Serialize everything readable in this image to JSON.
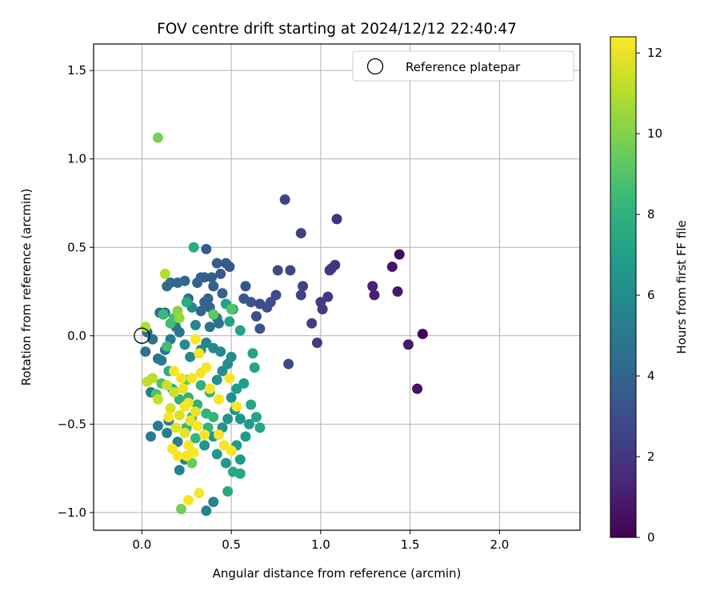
{
  "chart_data": {
    "type": "scatter",
    "title": "FOV centre drift starting at 2024/12/12 22:40:47",
    "xlabel": "Angular distance from reference (arcmin)",
    "ylabel": "Rotation from reference (arcmin)",
    "xlim": [
      -0.27,
      2.45
    ],
    "ylim": [
      -1.1,
      1.65
    ],
    "xticks": [
      0.0,
      0.5,
      1.0,
      1.5,
      2.0
    ],
    "xtick_labels": [
      "0.0",
      "0.5",
      "1.0",
      "1.5",
      "2.0"
    ],
    "yticks": [
      -1.0,
      -0.5,
      0.0,
      0.5,
      1.0,
      1.5
    ],
    "ytick_labels": [
      "−1.0",
      "−0.5",
      "0.0",
      "0.5",
      "1.0",
      "1.5"
    ],
    "grid": true,
    "legend": {
      "position": "top-right",
      "entries": [
        {
          "label": "Reference platepar",
          "marker": "open-circle"
        }
      ]
    },
    "reference_point": {
      "x": 0.0,
      "y": 0.0
    },
    "colorbar": {
      "label": "Hours from first FF file",
      "range": [
        0,
        12.4
      ],
      "ticks": [
        0,
        2,
        4,
        6,
        8,
        10,
        12
      ],
      "tick_labels": [
        "0",
        "2",
        "4",
        "6",
        "8",
        "10",
        "12"
      ],
      "colormap": "viridis",
      "colors": [
        "#440154",
        "#482878",
        "#3e4989",
        "#31688e",
        "#26828e",
        "#1f9e89",
        "#35b779",
        "#6ece58",
        "#b5de2b",
        "#fde725"
      ]
    },
    "points": [
      {
        "x": 1.57,
        "y": 0.01,
        "c": 0.1
      },
      {
        "x": 1.44,
        "y": 0.46,
        "c": 0.3
      },
      {
        "x": 1.54,
        "y": -0.3,
        "c": 0.6
      },
      {
        "x": 1.4,
        "y": 0.39,
        "c": 0.7
      },
      {
        "x": 1.49,
        "y": -0.05,
        "c": 0.8
      },
      {
        "x": 1.43,
        "y": 0.25,
        "c": 0.9
      },
      {
        "x": 1.3,
        "y": 0.23,
        "c": 1.1
      },
      {
        "x": 1.29,
        "y": 0.28,
        "c": 1.2
      },
      {
        "x": 1.09,
        "y": 0.66,
        "c": 1.8
      },
      {
        "x": 1.08,
        "y": 0.4,
        "c": 1.9
      },
      {
        "x": 1.06,
        "y": 0.38,
        "c": 2.0
      },
      {
        "x": 1.05,
        "y": 0.37,
        "c": 2.0
      },
      {
        "x": 1.04,
        "y": 0.22,
        "c": 2.1
      },
      {
        "x": 1.0,
        "y": 0.19,
        "c": 2.2
      },
      {
        "x": 1.01,
        "y": 0.15,
        "c": 2.2
      },
      {
        "x": 0.98,
        "y": -0.04,
        "c": 2.3
      },
      {
        "x": 0.95,
        "y": 0.07,
        "c": 2.3
      },
      {
        "x": 0.89,
        "y": 0.58,
        "c": 2.4
      },
      {
        "x": 0.9,
        "y": 0.28,
        "c": 2.4
      },
      {
        "x": 0.89,
        "y": 0.23,
        "c": 2.5
      },
      {
        "x": 0.8,
        "y": 0.77,
        "c": 2.6
      },
      {
        "x": 0.83,
        "y": 0.37,
        "c": 2.6
      },
      {
        "x": 0.82,
        "y": -0.16,
        "c": 2.7
      },
      {
        "x": 0.76,
        "y": 0.37,
        "c": 2.8
      },
      {
        "x": 0.75,
        "y": 0.23,
        "c": 2.8
      },
      {
        "x": 0.72,
        "y": 0.19,
        "c": 2.9
      },
      {
        "x": 0.7,
        "y": 0.16,
        "c": 3.0
      },
      {
        "x": 0.66,
        "y": 0.18,
        "c": 3.0
      },
      {
        "x": 0.64,
        "y": 0.11,
        "c": 3.1
      },
      {
        "x": 0.66,
        "y": 0.04,
        "c": 3.2
      },
      {
        "x": 0.61,
        "y": 0.19,
        "c": 3.3
      },
      {
        "x": 0.58,
        "y": 0.28,
        "c": 3.3
      },
      {
        "x": 0.57,
        "y": 0.21,
        "c": 3.4
      },
      {
        "x": 0.49,
        "y": 0.39,
        "c": 3.4
      },
      {
        "x": 0.47,
        "y": 0.41,
        "c": 3.5
      },
      {
        "x": 0.44,
        "y": 0.35,
        "c": 3.5
      },
      {
        "x": 0.42,
        "y": 0.41,
        "c": 3.6
      },
      {
        "x": 0.36,
        "y": 0.49,
        "c": 3.6
      },
      {
        "x": 0.39,
        "y": 0.33,
        "c": 3.7
      },
      {
        "x": 0.35,
        "y": 0.33,
        "c": 3.7
      },
      {
        "x": 0.33,
        "y": 0.33,
        "c": 3.8
      },
      {
        "x": 0.31,
        "y": 0.3,
        "c": 3.8
      },
      {
        "x": 0.4,
        "y": 0.28,
        "c": 3.9
      },
      {
        "x": 0.45,
        "y": 0.24,
        "c": 3.9
      },
      {
        "x": 0.37,
        "y": 0.21,
        "c": 4.0
      },
      {
        "x": 0.35,
        "y": 0.19,
        "c": 4.0
      },
      {
        "x": 0.38,
        "y": 0.16,
        "c": 4.1
      },
      {
        "x": 0.33,
        "y": 0.14,
        "c": 4.1
      },
      {
        "x": 0.24,
        "y": 0.31,
        "c": 4.2
      },
      {
        "x": 0.2,
        "y": 0.3,
        "c": 4.2
      },
      {
        "x": 0.16,
        "y": 0.3,
        "c": 4.3
      },
      {
        "x": 0.14,
        "y": 0.28,
        "c": 4.3
      },
      {
        "x": 0.26,
        "y": 0.21,
        "c": 4.4
      },
      {
        "x": 0.1,
        "y": 0.13,
        "c": 4.4
      },
      {
        "x": 0.13,
        "y": 0.13,
        "c": 4.5
      },
      {
        "x": 0.03,
        "y": 0.02,
        "c": 4.5
      },
      {
        "x": 0.06,
        "y": -0.02,
        "c": 4.6
      },
      {
        "x": 0.02,
        "y": -0.09,
        "c": 4.6
      },
      {
        "x": 0.09,
        "y": -0.13,
        "c": 4.7
      },
      {
        "x": 0.38,
        "y": 0.05,
        "c": 4.7
      },
      {
        "x": 0.42,
        "y": 0.1,
        "c": 4.8
      },
      {
        "x": 0.43,
        "y": 0.07,
        "c": 4.8
      },
      {
        "x": 0.19,
        "y": 0.05,
        "c": 4.9
      },
      {
        "x": 0.21,
        "y": 0.02,
        "c": 4.9
      },
      {
        "x": 0.16,
        "y": -0.02,
        "c": 5.0
      },
      {
        "x": 0.13,
        "y": -0.08,
        "c": 5.0
      },
      {
        "x": 0.11,
        "y": -0.14,
        "c": 5.1
      },
      {
        "x": 0.05,
        "y": -0.32,
        "c": 5.1
      },
      {
        "x": 0.05,
        "y": -0.57,
        "c": 5.2
      },
      {
        "x": 0.09,
        "y": -0.51,
        "c": 5.2
      },
      {
        "x": 0.14,
        "y": -0.55,
        "c": 5.3
      },
      {
        "x": 0.15,
        "y": -0.48,
        "c": 5.3
      },
      {
        "x": 0.2,
        "y": -0.6,
        "c": 5.4
      },
      {
        "x": 0.21,
        "y": -0.76,
        "c": 5.4
      },
      {
        "x": 0.24,
        "y": -0.7,
        "c": 5.5
      },
      {
        "x": 0.36,
        "y": -0.99,
        "c": 5.5
      },
      {
        "x": 0.4,
        "y": -0.94,
        "c": 5.6
      },
      {
        "x": 0.28,
        "y": 0.16,
        "c": 5.6
      },
      {
        "x": 0.3,
        "y": 0.06,
        "c": 5.7
      },
      {
        "x": 0.36,
        "y": -0.04,
        "c": 5.7
      },
      {
        "x": 0.4,
        "y": -0.07,
        "c": 5.8
      },
      {
        "x": 0.44,
        "y": -0.09,
        "c": 5.8
      },
      {
        "x": 0.33,
        "y": -0.08,
        "c": 5.9
      },
      {
        "x": 0.27,
        "y": -0.12,
        "c": 5.9
      },
      {
        "x": 0.24,
        "y": -0.05,
        "c": 6.0
      },
      {
        "x": 0.48,
        "y": -0.16,
        "c": 6.0
      },
      {
        "x": 0.5,
        "y": -0.12,
        "c": 6.1
      },
      {
        "x": 0.45,
        "y": -0.2,
        "c": 6.1
      },
      {
        "x": 0.42,
        "y": -0.25,
        "c": 6.2
      },
      {
        "x": 0.5,
        "y": -0.35,
        "c": 6.2
      },
      {
        "x": 0.52,
        "y": -0.42,
        "c": 6.3
      },
      {
        "x": 0.48,
        "y": -0.47,
        "c": 6.3
      },
      {
        "x": 0.55,
        "y": -0.47,
        "c": 6.4
      },
      {
        "x": 0.45,
        "y": -0.52,
        "c": 6.4
      },
      {
        "x": 0.4,
        "y": -0.57,
        "c": 6.5
      },
      {
        "x": 0.35,
        "y": -0.62,
        "c": 6.5
      },
      {
        "x": 0.42,
        "y": -0.67,
        "c": 6.6
      },
      {
        "x": 0.47,
        "y": -0.72,
        "c": 6.6
      },
      {
        "x": 0.55,
        "y": -0.7,
        "c": 6.7
      },
      {
        "x": 0.53,
        "y": -0.62,
        "c": 6.7
      },
      {
        "x": 0.58,
        "y": -0.57,
        "c": 6.8
      },
      {
        "x": 0.6,
        "y": -0.5,
        "c": 6.8
      },
      {
        "x": 0.53,
        "y": -0.3,
        "c": 6.9
      },
      {
        "x": 0.57,
        "y": -0.27,
        "c": 6.9
      },
      {
        "x": 0.47,
        "y": 0.18,
        "c": 7.0
      },
      {
        "x": 0.51,
        "y": 0.15,
        "c": 7.0
      },
      {
        "x": 0.49,
        "y": 0.08,
        "c": 7.1
      },
      {
        "x": 0.55,
        "y": 0.03,
        "c": 7.1
      },
      {
        "x": 0.62,
        "y": -0.1,
        "c": 7.2
      },
      {
        "x": 0.63,
        "y": -0.18,
        "c": 7.2
      },
      {
        "x": 0.66,
        "y": -0.52,
        "c": 7.3
      },
      {
        "x": 0.64,
        "y": -0.46,
        "c": 7.3
      },
      {
        "x": 0.61,
        "y": -0.39,
        "c": 7.4
      },
      {
        "x": 0.55,
        "y": -0.78,
        "c": 7.4
      },
      {
        "x": 0.51,
        "y": -0.77,
        "c": 7.5
      },
      {
        "x": 0.48,
        "y": -0.88,
        "c": 7.5
      },
      {
        "x": 0.29,
        "y": 0.5,
        "c": 7.6
      },
      {
        "x": 0.25,
        "y": 0.19,
        "c": 7.6
      },
      {
        "x": 0.15,
        "y": -0.2,
        "c": 7.7
      },
      {
        "x": 0.17,
        "y": -0.3,
        "c": 7.7
      },
      {
        "x": 0.21,
        "y": -0.36,
        "c": 7.8
      },
      {
        "x": 0.26,
        "y": -0.35,
        "c": 7.8
      },
      {
        "x": 0.31,
        "y": -0.39,
        "c": 7.9
      },
      {
        "x": 0.33,
        "y": -0.28,
        "c": 7.9
      },
      {
        "x": 0.38,
        "y": -0.32,
        "c": 8.0
      },
      {
        "x": 0.36,
        "y": -0.44,
        "c": 8.0
      },
      {
        "x": 0.4,
        "y": -0.46,
        "c": 8.1
      },
      {
        "x": 0.37,
        "y": -0.52,
        "c": 8.1
      },
      {
        "x": 0.3,
        "y": -0.58,
        "c": 8.2
      },
      {
        "x": 0.25,
        "y": -0.52,
        "c": 8.3
      },
      {
        "x": 0.28,
        "y": -0.46,
        "c": 8.3
      },
      {
        "x": 0.12,
        "y": 0.12,
        "c": 8.4
      },
      {
        "x": 0.16,
        "y": 0.07,
        "c": 8.5
      },
      {
        "x": 0.18,
        "y": 0.1,
        "c": 8.6
      },
      {
        "x": 0.14,
        "y": -0.06,
        "c": 8.7
      },
      {
        "x": 0.11,
        "y": -0.27,
        "c": 8.8
      },
      {
        "x": 0.08,
        "y": -0.33,
        "c": 8.9
      },
      {
        "x": 0.5,
        "y": 0.15,
        "c": 9.0
      },
      {
        "x": 0.4,
        "y": 0.12,
        "c": 9.2
      },
      {
        "x": 0.25,
        "y": -0.25,
        "c": 9.4
      },
      {
        "x": 0.28,
        "y": -0.72,
        "c": 9.5
      },
      {
        "x": 0.22,
        "y": -0.98,
        "c": 9.7
      },
      {
        "x": 0.09,
        "y": 1.12,
        "c": 9.8
      },
      {
        "x": 0.2,
        "y": 0.14,
        "c": 10.2
      },
      {
        "x": 0.21,
        "y": 0.1,
        "c": 10.4
      },
      {
        "x": 0.13,
        "y": 0.35,
        "c": 11.0
      },
      {
        "x": 0.02,
        "y": 0.05,
        "c": 11.0
      },
      {
        "x": 0.06,
        "y": -0.24,
        "c": 11.1
      },
      {
        "x": 0.03,
        "y": -0.26,
        "c": 11.2
      },
      {
        "x": 0.09,
        "y": -0.36,
        "c": 11.3
      },
      {
        "x": 0.14,
        "y": -0.28,
        "c": 11.4
      },
      {
        "x": 0.18,
        "y": -0.32,
        "c": 11.5
      },
      {
        "x": 0.16,
        "y": -0.41,
        "c": 11.6
      },
      {
        "x": 0.21,
        "y": -0.45,
        "c": 11.7
      },
      {
        "x": 0.19,
        "y": -0.52,
        "c": 11.8
      },
      {
        "x": 0.24,
        "y": -0.55,
        "c": 11.9
      },
      {
        "x": 0.27,
        "y": -0.48,
        "c": 12.0
      },
      {
        "x": 0.3,
        "y": -0.43,
        "c": 12.0
      },
      {
        "x": 0.26,
        "y": -0.38,
        "c": 12.1
      },
      {
        "x": 0.23,
        "y": -0.3,
        "c": 12.1
      },
      {
        "x": 0.28,
        "y": -0.24,
        "c": 12.2
      },
      {
        "x": 0.33,
        "y": -0.21,
        "c": 12.2
      },
      {
        "x": 0.36,
        "y": -0.18,
        "c": 12.3
      },
      {
        "x": 0.32,
        "y": -0.1,
        "c": 12.3
      },
      {
        "x": 0.3,
        "y": -0.02,
        "c": 12.3
      },
      {
        "x": 0.38,
        "y": -0.3,
        "c": 12.3
      },
      {
        "x": 0.43,
        "y": -0.36,
        "c": 12.3
      },
      {
        "x": 0.49,
        "y": -0.24,
        "c": 12.3
      },
      {
        "x": 0.53,
        "y": -0.4,
        "c": 12.3
      },
      {
        "x": 0.46,
        "y": -0.62,
        "c": 12.3
      },
      {
        "x": 0.5,
        "y": -0.65,
        "c": 12.3
      },
      {
        "x": 0.43,
        "y": -0.56,
        "c": 12.3
      },
      {
        "x": 0.35,
        "y": -0.56,
        "c": 12.3
      },
      {
        "x": 0.25,
        "y": -0.68,
        "c": 12.3
      },
      {
        "x": 0.2,
        "y": -0.68,
        "c": 12.3
      },
      {
        "x": 0.17,
        "y": -0.64,
        "c": 12.3
      },
      {
        "x": 0.26,
        "y": -0.62,
        "c": 12.3
      },
      {
        "x": 0.29,
        "y": -0.66,
        "c": 12.3
      },
      {
        "x": 0.32,
        "y": -0.89,
        "c": 12.3
      },
      {
        "x": 0.26,
        "y": -0.93,
        "c": 12.3
      },
      {
        "x": 0.22,
        "y": -0.24,
        "c": 12.3
      },
      {
        "x": 0.18,
        "y": -0.2,
        "c": 12.3
      },
      {
        "x": 0.24,
        "y": -0.4,
        "c": 12.3
      },
      {
        "x": 0.31,
        "y": -0.51,
        "c": 12.3
      },
      {
        "x": 0.15,
        "y": -0.46,
        "c": 12.3
      }
    ]
  }
}
